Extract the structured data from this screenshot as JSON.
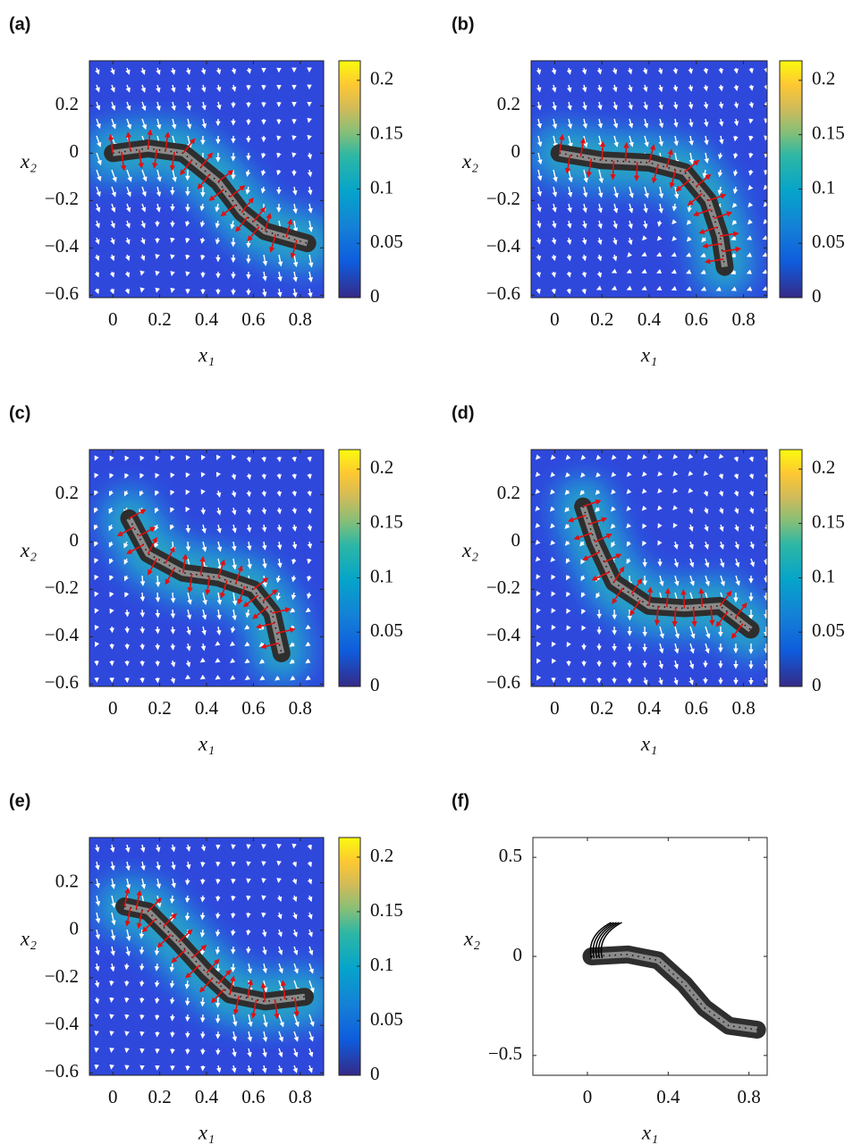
{
  "chart_data": [
    {
      "type": "heatmap-quiver",
      "label": "(a)",
      "xlabel": "x₁",
      "ylabel": "x₂",
      "xlim": [
        -0.1,
        0.9
      ],
      "ylim": [
        -0.61,
        0.39
      ],
      "xticks": [
        0,
        0.2,
        0.4,
        0.6,
        0.8
      ],
      "yticks": [
        {
          "value": -0.6,
          "label": "−0.6"
        },
        {
          "value": -0.4,
          "label": "−0.4"
        },
        {
          "value": -0.2,
          "label": "−0.2"
        },
        0,
        0.2
      ],
      "clim": [
        0,
        0.218
      ],
      "cticks": [
        0,
        0.05,
        0.1,
        0.15,
        0.2
      ],
      "colormap": "parula",
      "x": [
        0,
        0.15,
        0.3,
        0.45,
        0.55,
        0.65,
        0.83
      ],
      "series": [
        {
          "color": "#333333",
          "values": [
            0,
            0.02,
            0,
            -0.12,
            -0.25,
            -0.33,
            -0.38
          ]
        }
      ]
    },
    {
      "type": "heatmap-quiver",
      "label": "(b)",
      "xlabel": "x₁",
      "ylabel": "x₂",
      "xlim": [
        -0.1,
        0.9
      ],
      "ylim": [
        -0.61,
        0.39
      ],
      "xticks": [
        0,
        0.2,
        0.4,
        0.6,
        0.8
      ],
      "yticks": [
        {
          "value": -0.6,
          "label": "−0.6"
        },
        {
          "value": -0.4,
          "label": "−0.4"
        },
        {
          "value": -0.2,
          "label": "−0.2"
        },
        0,
        0.2
      ],
      "clim": [
        0,
        0.218
      ],
      "cticks": [
        0,
        0.05,
        0.1,
        0.15,
        0.2
      ],
      "colormap": "parula",
      "x": [
        0.02,
        0.2,
        0.4,
        0.55,
        0.65,
        0.7,
        0.72
      ],
      "series": [
        {
          "color": "#333333",
          "values": [
            0,
            -0.03,
            -0.04,
            -0.08,
            -0.2,
            -0.35,
            -0.48
          ]
        }
      ]
    },
    {
      "type": "heatmap-quiver",
      "label": "(c)",
      "xlabel": "x₁",
      "ylabel": "x₂",
      "xlim": [
        -0.1,
        0.9
      ],
      "ylim": [
        -0.61,
        0.39
      ],
      "xticks": [
        0,
        0.2,
        0.4,
        0.6,
        0.8
      ],
      "yticks": [
        {
          "value": -0.6,
          "label": "−0.6"
        },
        {
          "value": -0.4,
          "label": "−0.4"
        },
        {
          "value": -0.2,
          "label": "−0.2"
        },
        0,
        0.2
      ],
      "clim": [
        0,
        0.218
      ],
      "cticks": [
        0,
        0.05,
        0.1,
        0.15,
        0.2
      ],
      "colormap": "parula",
      "x": [
        0.07,
        0.15,
        0.3,
        0.45,
        0.6,
        0.68,
        0.72
      ],
      "series": [
        {
          "color": "#333333",
          "values": [
            0.1,
            -0.05,
            -0.13,
            -0.15,
            -0.2,
            -0.3,
            -0.47
          ]
        }
      ]
    },
    {
      "type": "heatmap-quiver",
      "label": "(d)",
      "xlabel": "x₁",
      "ylabel": "x₂",
      "xlim": [
        -0.1,
        0.9
      ],
      "ylim": [
        -0.61,
        0.39
      ],
      "xticks": [
        0,
        0.2,
        0.4,
        0.6,
        0.8
      ],
      "yticks": [
        {
          "value": -0.6,
          "label": "−0.6"
        },
        {
          "value": -0.4,
          "label": "−0.4"
        },
        {
          "value": -0.2,
          "label": "−0.2"
        },
        0,
        0.2
      ],
      "clim": [
        0,
        0.218
      ],
      "cticks": [
        0,
        0.05,
        0.1,
        0.15,
        0.2
      ],
      "colormap": "parula",
      "x": [
        0.12,
        0.17,
        0.25,
        0.4,
        0.55,
        0.7,
        0.83
      ],
      "series": [
        {
          "color": "#333333",
          "values": [
            0.15,
            0,
            -0.17,
            -0.27,
            -0.28,
            -0.27,
            -0.37
          ]
        }
      ]
    },
    {
      "type": "heatmap-quiver",
      "label": "(e)",
      "xlabel": "x₁",
      "ylabel": "x₂",
      "xlim": [
        -0.1,
        0.9
      ],
      "ylim": [
        -0.61,
        0.39
      ],
      "xticks": [
        0,
        0.2,
        0.4,
        0.6,
        0.8
      ],
      "yticks": [
        {
          "value": -0.6,
          "label": "−0.6"
        },
        {
          "value": -0.4,
          "label": "−0.4"
        },
        {
          "value": -0.2,
          "label": "−0.2"
        },
        0,
        0.2
      ],
      "clim": [
        0,
        0.218
      ],
      "cticks": [
        0,
        0.05,
        0.1,
        0.15,
        0.2
      ],
      "colormap": "parula",
      "x": [
        0.05,
        0.15,
        0.28,
        0.4,
        0.5,
        0.65,
        0.82
      ],
      "series": [
        {
          "color": "#333333",
          "values": [
            0.1,
            0.08,
            -0.05,
            -0.18,
            -0.27,
            -0.3,
            -0.28
          ]
        }
      ]
    },
    {
      "type": "line",
      "label": "(f)",
      "xlabel": "x₁",
      "ylabel": "x₂",
      "xlim": [
        -0.27,
        0.89
      ],
      "ylim": [
        -0.6,
        0.6
      ],
      "xticks": [
        0,
        0.4,
        0.8
      ],
      "yticks": [
        {
          "value": -0.5,
          "label": "−0.5"
        },
        0,
        0.5
      ],
      "x": [
        0.02,
        0.2,
        0.35,
        0.48,
        0.58,
        0.7,
        0.84
      ],
      "series": [
        {
          "color": "#444444",
          "values": [
            0,
            0.01,
            -0.02,
            -0.14,
            -0.26,
            -0.35,
            -0.37
          ]
        }
      ]
    }
  ]
}
